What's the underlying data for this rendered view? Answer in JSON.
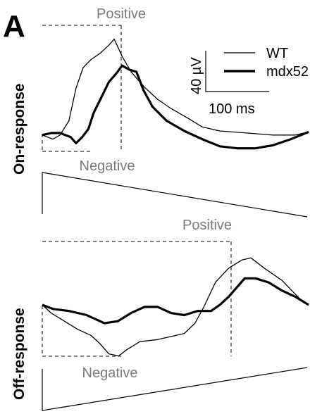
{
  "panel_label": "A",
  "legend": [
    {
      "label": "WT",
      "style": "thin"
    },
    {
      "label": "mdx52",
      "style": "thick"
    }
  ],
  "scale_bar": {
    "vertical_label": "40 µV",
    "horizontal_label": "100 ms"
  },
  "colors": {
    "trace": "#000000",
    "annotation": "#7a7a7a"
  },
  "chart_data": [
    {
      "type": "line",
      "title": "On-response",
      "row_label": "On-response",
      "annotations": {
        "positive": "Positive",
        "negative": "Negative"
      },
      "stimulus": "ramp-down",
      "x_unit": "ms",
      "y_unit": "µV",
      "series": [
        {
          "name": "WT",
          "style": "thin",
          "points": [
            [
              0,
              -4
            ],
            [
              12,
              -8
            ],
            [
              20,
              -4
            ],
            [
              30,
              10
            ],
            [
              38,
              42
            ],
            [
              46,
              62
            ],
            [
              55,
              70
            ],
            [
              65,
              76
            ],
            [
              75,
              84
            ],
            [
              81,
              90
            ],
            [
              90,
              73
            ],
            [
              100,
              58
            ],
            [
              115,
              43
            ],
            [
              130,
              31
            ],
            [
              145,
              22
            ],
            [
              165,
              12
            ],
            [
              180,
              4
            ],
            [
              200,
              0
            ],
            [
              230,
              -2
            ],
            [
              260,
              -4
            ],
            [
              285,
              -4
            ],
            [
              300,
              -1
            ]
          ]
        },
        {
          "name": "mdx52",
          "style": "thick",
          "points": [
            [
              0,
              -4
            ],
            [
              10,
              -2
            ],
            [
              20,
              -2
            ],
            [
              32,
              -6
            ],
            [
              38,
              -12
            ],
            [
              45,
              -6
            ],
            [
              52,
              2
            ],
            [
              58,
              18
            ],
            [
              66,
              32
            ],
            [
              75,
              48
            ],
            [
              83,
              56
            ],
            [
              90,
              64
            ],
            [
              98,
              60
            ],
            [
              106,
              58
            ],
            [
              114,
              40
            ],
            [
              124,
              24
            ],
            [
              140,
              10
            ],
            [
              160,
              0
            ],
            [
              180,
              -8
            ],
            [
              200,
              -15
            ],
            [
              220,
              -17
            ],
            [
              240,
              -17
            ],
            [
              260,
              -14
            ],
            [
              280,
              -8
            ],
            [
              300,
              -1
            ]
          ]
        }
      ]
    },
    {
      "type": "line",
      "title": "Off-response",
      "row_label": "Off-response",
      "annotations": {
        "positive": "Positive",
        "negative": "Negative"
      },
      "stimulus": "ramp-up",
      "x_unit": "ms",
      "y_unit": "µV",
      "series": [
        {
          "name": "WT",
          "style": "thin",
          "points": [
            [
              0,
              0
            ],
            [
              10,
              -8
            ],
            [
              25,
              -16
            ],
            [
              40,
              -24
            ],
            [
              55,
              -30
            ],
            [
              65,
              -38
            ],
            [
              75,
              -48
            ],
            [
              86,
              -50
            ],
            [
              95,
              -44
            ],
            [
              110,
              -36
            ],
            [
              130,
              -34
            ],
            [
              150,
              -30
            ],
            [
              160,
              -28
            ],
            [
              172,
              -18
            ],
            [
              182,
              -2
            ],
            [
              195,
              22
            ],
            [
              210,
              36
            ],
            [
              225,
              44
            ],
            [
              235,
              46
            ],
            [
              250,
              36
            ],
            [
              270,
              24
            ],
            [
              290,
              6
            ],
            [
              300,
              0
            ]
          ]
        },
        {
          "name": "mdx52",
          "style": "thick",
          "points": [
            [
              0,
              0
            ],
            [
              12,
              -4
            ],
            [
              30,
              -6
            ],
            [
              50,
              -10
            ],
            [
              70,
              -18
            ],
            [
              85,
              -16
            ],
            [
              100,
              -8
            ],
            [
              115,
              -2
            ],
            [
              130,
              -2
            ],
            [
              145,
              -8
            ],
            [
              160,
              -10
            ],
            [
              175,
              -6
            ],
            [
              190,
              -6
            ],
            [
              200,
              0
            ],
            [
              210,
              8
            ],
            [
              220,
              18
            ],
            [
              228,
              26
            ],
            [
              240,
              26
            ],
            [
              255,
              22
            ],
            [
              270,
              14
            ],
            [
              285,
              8
            ],
            [
              300,
              0
            ]
          ]
        }
      ]
    }
  ]
}
